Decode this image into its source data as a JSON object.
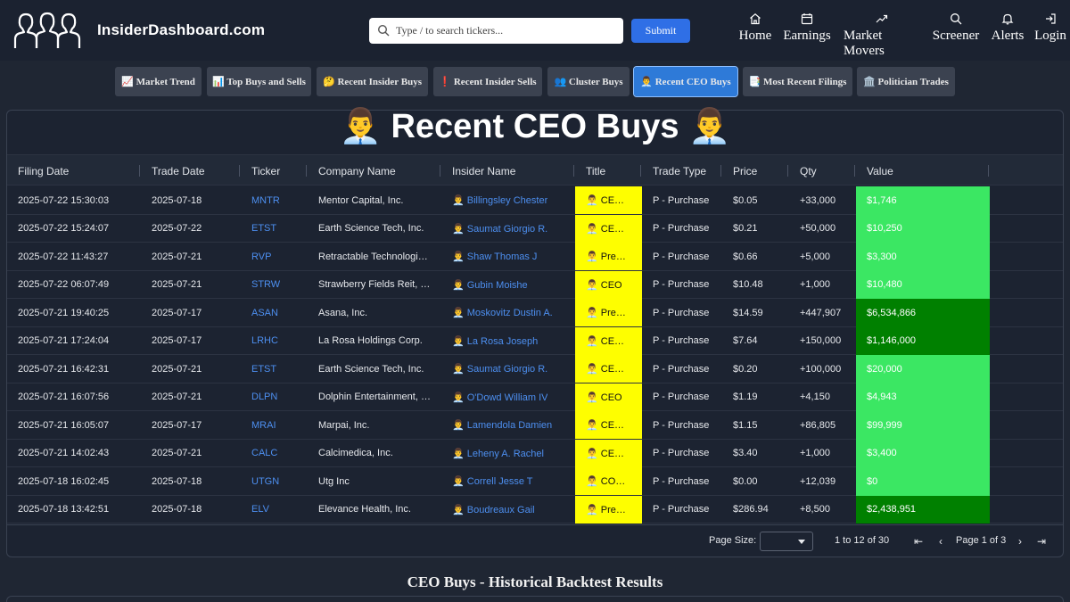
{
  "header": {
    "brand": "InsiderDashboard.com",
    "search_placeholder": "Type / to search tickers...",
    "submit_label": "Submit",
    "nav": [
      {
        "label": "Home",
        "icon": "home-icon"
      },
      {
        "label": "Earnings",
        "icon": "calendar-icon"
      },
      {
        "label": "Market Movers",
        "icon": "trending-up-icon"
      },
      {
        "label": "Screener",
        "icon": "search-icon"
      },
      {
        "label": "Alerts",
        "icon": "bell-icon"
      },
      {
        "label": "Login",
        "icon": "login-icon"
      }
    ]
  },
  "tabs": [
    {
      "label": "📈 Market Trend"
    },
    {
      "label": "📊 Top Buys and Sells"
    },
    {
      "label": "🤔 Recent Insider Buys"
    },
    {
      "label": "❗ Recent Insider Sells"
    },
    {
      "label": "👥 Cluster Buys"
    },
    {
      "label": "👨‍💼 Recent CEO Buys"
    },
    {
      "label": "📑 Most Recent Filings"
    },
    {
      "label": "🏛️ Politician Trades"
    }
  ],
  "page_title": "👨‍💼 Recent CEO Buys 👨‍💼",
  "table": {
    "columns": [
      "Filing Date",
      "Trade Date",
      "Ticker",
      "Company Name",
      "Insider Name",
      "Title",
      "Trade Type",
      "Price",
      "Qty",
      "Value"
    ],
    "rows": [
      {
        "filing": "2025-07-22 15:30:03",
        "trade": "2025-07-18",
        "ticker": "MNTR",
        "company": "Mentor Capital, Inc.",
        "insider": "👨‍💼 Billingsley Chester",
        "title": "👨‍💼 CE…",
        "type": "P - Purchase",
        "price": "$0.05",
        "qty": "+33,000",
        "value": "$1,746",
        "value_color": "#3be763"
      },
      {
        "filing": "2025-07-22 15:24:07",
        "trade": "2025-07-22",
        "ticker": "ETST",
        "company": "Earth Science Tech, Inc.",
        "insider": "👨‍💼 Saumat Giorgio R.",
        "title": "👨‍💼 CE…",
        "type": "P - Purchase",
        "price": "$0.21",
        "qty": "+50,000",
        "value": "$10,250",
        "value_color": "#3be763"
      },
      {
        "filing": "2025-07-22 11:43:27",
        "trade": "2025-07-21",
        "ticker": "RVP",
        "company": "Retractable Technologie…",
        "insider": "👨‍💼 Shaw Thomas J",
        "title": "👨‍💼 Pre…",
        "type": "P - Purchase",
        "price": "$0.66",
        "qty": "+5,000",
        "value": "$3,300",
        "value_color": "#3be763"
      },
      {
        "filing": "2025-07-22 06:07:49",
        "trade": "2025-07-21",
        "ticker": "STRW",
        "company": "Strawberry Fields Reit, I…",
        "insider": "👨‍💼 Gubin Moishe",
        "title": "👨‍💼 CEO",
        "type": "P - Purchase",
        "price": "$10.48",
        "qty": "+1,000",
        "value": "$10,480",
        "value_color": "#3be763"
      },
      {
        "filing": "2025-07-21 19:40:25",
        "trade": "2025-07-17",
        "ticker": "ASAN",
        "company": "Asana, Inc.",
        "insider": "👨‍💼 Moskovitz Dustin A.",
        "title": "👨‍💼 Pre…",
        "type": "P - Purchase",
        "price": "$14.59",
        "qty": "+447,907",
        "value": "$6,534,866",
        "value_color": "#008000"
      },
      {
        "filing": "2025-07-21 17:24:04",
        "trade": "2025-07-17",
        "ticker": "LRHC",
        "company": "La Rosa Holdings Corp.",
        "insider": "👨‍💼 La Rosa Joseph",
        "title": "👨‍💼 CE…",
        "type": "P - Purchase",
        "price": "$7.64",
        "qty": "+150,000",
        "value": "$1,146,000",
        "value_color": "#008000"
      },
      {
        "filing": "2025-07-21 16:42:31",
        "trade": "2025-07-21",
        "ticker": "ETST",
        "company": "Earth Science Tech, Inc.",
        "insider": "👨‍💼 Saumat Giorgio R.",
        "title": "👨‍💼 CE…",
        "type": "P - Purchase",
        "price": "$0.20",
        "qty": "+100,000",
        "value": "$20,000",
        "value_color": "#3be763"
      },
      {
        "filing": "2025-07-21 16:07:56",
        "trade": "2025-07-21",
        "ticker": "DLPN",
        "company": "Dolphin Entertainment, I…",
        "insider": "👨‍💼 O'Dowd William IV",
        "title": "👨‍💼 CEO",
        "type": "P - Purchase",
        "price": "$1.19",
        "qty": "+4,150",
        "value": "$4,943",
        "value_color": "#3be763"
      },
      {
        "filing": "2025-07-21 16:05:07",
        "trade": "2025-07-17",
        "ticker": "MRAI",
        "company": "Marpai, Inc.",
        "insider": "👨‍💼 Lamendola Damien",
        "title": "👨‍💼 CE…",
        "type": "P - Purchase",
        "price": "$1.15",
        "qty": "+86,805",
        "value": "$99,999",
        "value_color": "#3be763"
      },
      {
        "filing": "2025-07-21 14:02:43",
        "trade": "2025-07-21",
        "ticker": "CALC",
        "company": "Calcimedica, Inc.",
        "insider": "👨‍💼 Leheny A. Rachel",
        "title": "👨‍💼 CE…",
        "type": "P - Purchase",
        "price": "$3.40",
        "qty": "+1,000",
        "value": "$3,400",
        "value_color": "#3be763"
      },
      {
        "filing": "2025-07-18 16:02:45",
        "trade": "2025-07-18",
        "ticker": "UTGN",
        "company": "Utg Inc",
        "insider": "👨‍💼 Correll Jesse T",
        "title": "👨‍💼 CO…",
        "type": "P - Purchase",
        "price": "$0.00",
        "qty": "+12,039",
        "value": "$0",
        "value_color": "#3be763"
      },
      {
        "filing": "2025-07-18 13:42:51",
        "trade": "2025-07-18",
        "ticker": "ELV",
        "company": "Elevance Health, Inc.",
        "insider": "👨‍💼 Boudreaux Gail",
        "title": "👨‍💼 Pre…",
        "type": "P - Purchase",
        "price": "$286.94",
        "qty": "+8,500",
        "value": "$2,438,951",
        "value_color": "#008000"
      }
    ]
  },
  "pagination": {
    "page_size_label": "Page Size:",
    "page_size_value": "",
    "range_text": "1 to 12 of 30",
    "page_text": "Page 1 of 3"
  },
  "section_subtitle": "CEO Buys - Historical Backtest Results",
  "colors": {
    "accent": "#2e7ad8",
    "title_highlight": "#fefe00",
    "value_high": "#008000",
    "value_low": "#3be763"
  }
}
